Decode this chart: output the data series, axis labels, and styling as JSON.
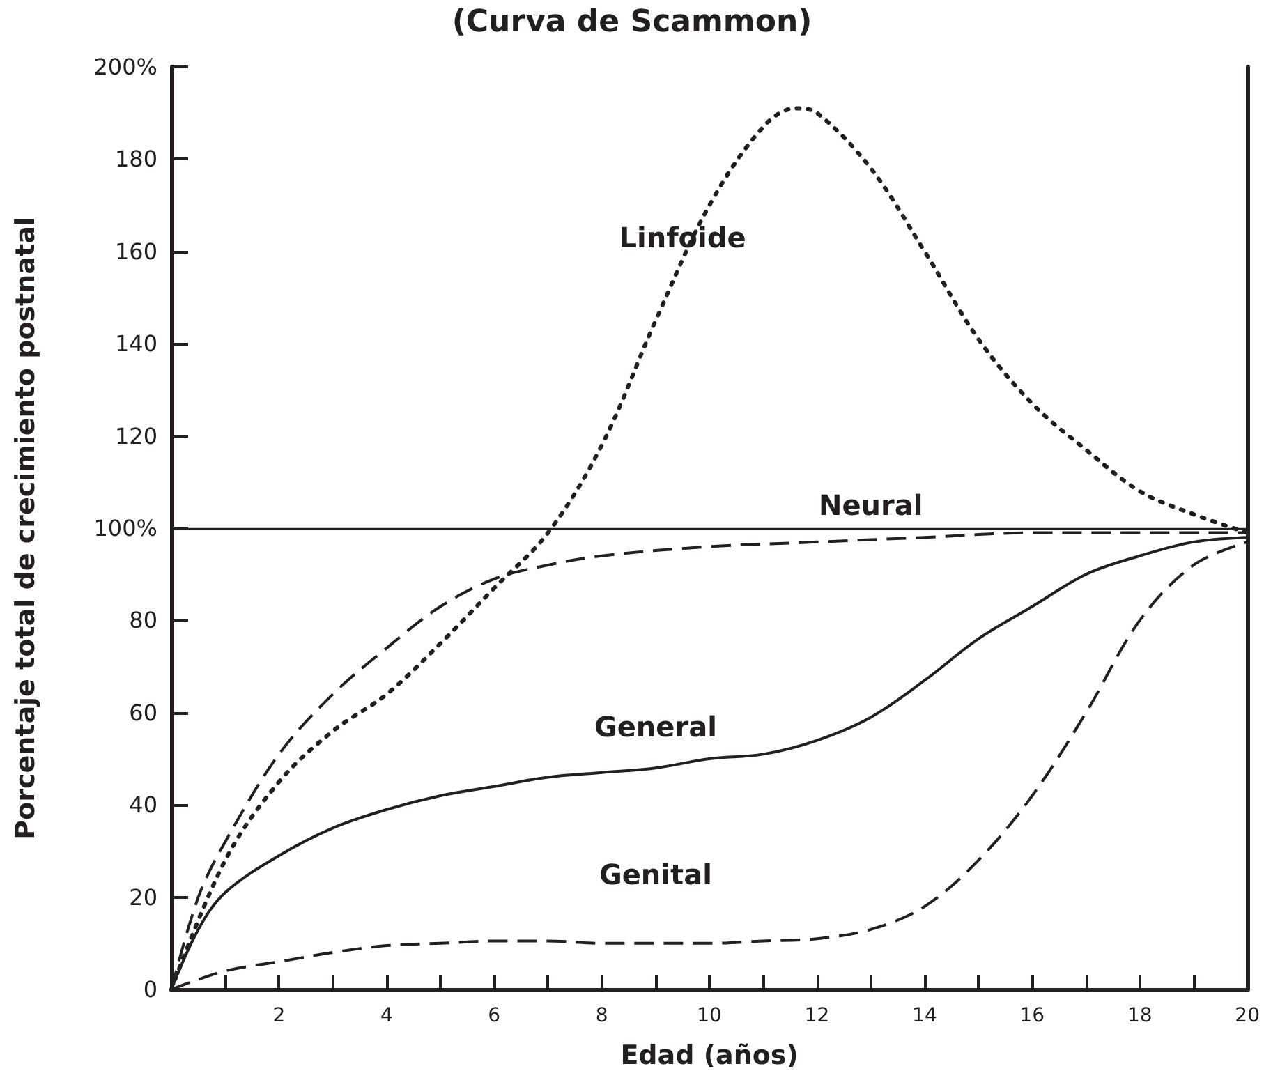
{
  "chart_data": {
    "type": "line",
    "title": "(Curva de Scammon)",
    "xlabel": "Edad (años)",
    "ylabel": "Porcentaje total de crecimiento postnatal",
    "xlim": [
      0,
      20
    ],
    "ylim": [
      0,
      200
    ],
    "xticks": [
      {
        "value": 0,
        "label": null
      },
      {
        "value": 1,
        "label": null
      },
      2,
      {
        "value": 3,
        "label": null
      },
      4,
      {
        "value": 5,
        "label": null
      },
      6,
      {
        "value": 7,
        "label": null
      },
      8,
      {
        "value": 9,
        "label": null
      },
      10,
      {
        "value": 11,
        "label": null
      },
      12,
      {
        "value": 13,
        "label": null
      },
      14,
      {
        "value": 15,
        "label": null
      },
      16,
      {
        "value": 17,
        "label": null
      },
      18,
      {
        "value": 19,
        "label": null
      },
      20
    ],
    "yticks": [
      0,
      20,
      40,
      60,
      80,
      {
        "value": 100,
        "label": "100%"
      },
      120,
      140,
      160,
      180,
      {
        "value": 200,
        "label": "200%"
      }
    ],
    "grid": false,
    "legend": false,
    "marker": "none",
    "ref_lines": [
      {
        "axis": "y",
        "value": 100,
        "color": "#231f20",
        "line_style": "solid"
      }
    ],
    "series": [
      {
        "name": "Linfoide",
        "color": "#231f20",
        "line_style": "dotted",
        "x": [
          0,
          1,
          2,
          3,
          4,
          5,
          6,
          7,
          8,
          9,
          10,
          11,
          11.6,
          12,
          13,
          14,
          15,
          16,
          17,
          18,
          19,
          20
        ],
        "values": [
          0,
          28,
          45,
          56,
          64,
          75,
          87,
          99,
          118,
          145,
          170,
          187,
          191,
          190,
          178,
          160,
          141,
          127,
          117,
          108,
          103,
          99
        ]
      },
      {
        "name": "Neural",
        "color": "#231f20",
        "line_style": "dashed",
        "x": [
          0,
          0.5,
          1,
          2,
          3,
          4,
          5,
          6,
          7,
          8,
          10,
          12,
          14,
          16,
          18,
          20
        ],
        "values": [
          0,
          20,
          32,
          51,
          64,
          74,
          83,
          89,
          92,
          94,
          96,
          97,
          98,
          99,
          99,
          99
        ]
      },
      {
        "name": "General",
        "color": "#231f20",
        "line_style": "solid",
        "x": [
          0,
          0.5,
          1,
          2,
          3,
          4,
          5,
          6,
          7,
          8,
          9,
          10,
          11,
          12,
          13,
          14,
          15,
          16,
          17,
          18,
          19,
          20
        ],
        "values": [
          0,
          13,
          21,
          29,
          35,
          39,
          42,
          44,
          46,
          47,
          48,
          50,
          51,
          54,
          59,
          67,
          76,
          83,
          90,
          94,
          97,
          98
        ]
      },
      {
        "name": "Genital",
        "color": "#231f20",
        "line_style": "dashed",
        "x": [
          0,
          1,
          2,
          3,
          4,
          5,
          6,
          7,
          8,
          9,
          10,
          11,
          12,
          13,
          14,
          15,
          16,
          17,
          18,
          19,
          20
        ],
        "values": [
          0,
          4,
          6,
          8,
          9.5,
          10,
          10.5,
          10.5,
          10,
          10,
          10,
          10.5,
          11,
          13,
          18,
          28,
          42,
          60,
          80,
          92,
          97
        ]
      }
    ]
  }
}
